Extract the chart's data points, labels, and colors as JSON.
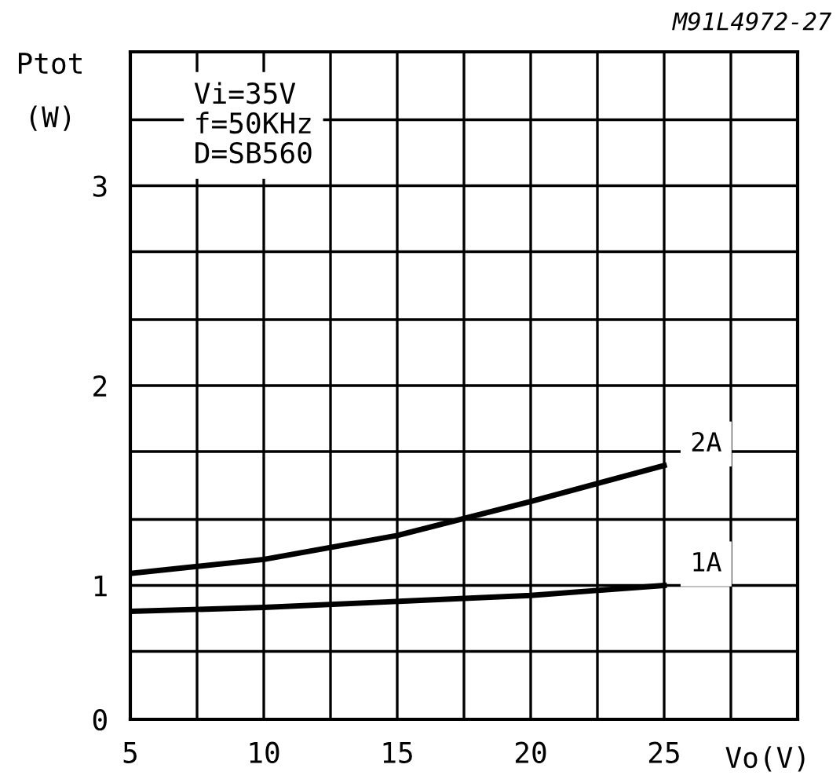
{
  "chart_data": {
    "type": "line",
    "ylabel": "Ptot\n(W)",
    "xlabel": "Vo(V)",
    "annotations": [
      "M91L4972-27",
      "Vi=35V\nf=50KHz\nD=SB560"
    ],
    "x": [
      5,
      10,
      15,
      20,
      25
    ],
    "series": [
      {
        "name": "2A",
        "color": "#000000",
        "values": [
          1.06,
          1.13,
          1.25,
          1.42,
          1.6
        ]
      },
      {
        "name": "1A",
        "color": "#000000",
        "values": [
          0.87,
          0.89,
          0.92,
          0.95,
          1.0
        ]
      }
    ],
    "xlim": [
      5,
      30
    ],
    "xticks": [
      5,
      {
        "value": 7.5,
        "label": null
      },
      10,
      {
        "value": 12.5,
        "label": null
      },
      15,
      {
        "value": 17.5,
        "label": null
      },
      20,
      {
        "value": 22.5,
        "label": null
      },
      25,
      {
        "value": 27.5,
        "label": null
      },
      {
        "value": 30,
        "label": null
      }
    ],
    "ylim": [
      0.33,
      3.67
    ],
    "yticks": [
      {
        "value": 0.33,
        "label": "0"
      },
      {
        "value": 0.67,
        "label": null
      },
      1,
      {
        "value": 1.33,
        "label": null
      },
      {
        "value": 1.67,
        "label": null
      },
      2,
      {
        "value": 2.33,
        "label": null
      },
      {
        "value": 2.67,
        "label": null
      },
      3,
      {
        "value": 3.33,
        "label": null
      },
      {
        "value": 3.67,
        "label": null
      }
    ],
    "grid": true,
    "legend": false,
    "marker": "none",
    "line_style": "solid"
  }
}
